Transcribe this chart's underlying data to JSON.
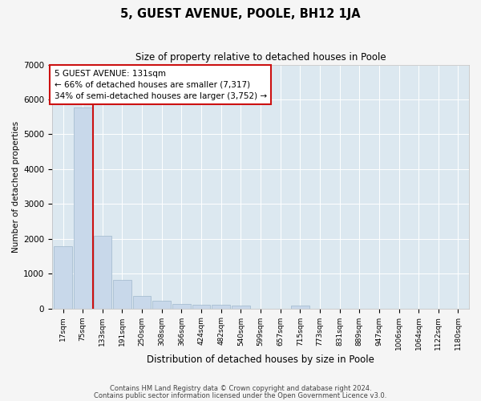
{
  "title": "5, GUEST AVENUE, POOLE, BH12 1JA",
  "subtitle": "Size of property relative to detached houses in Poole",
  "xlabel": "Distribution of detached houses by size in Poole",
  "ylabel": "Number of detached properties",
  "bar_labels": [
    "17sqm",
    "75sqm",
    "133sqm",
    "191sqm",
    "250sqm",
    "308sqm",
    "366sqm",
    "424sqm",
    "482sqm",
    "540sqm",
    "599sqm",
    "657sqm",
    "715sqm",
    "773sqm",
    "831sqm",
    "889sqm",
    "947sqm",
    "1006sqm",
    "1064sqm",
    "1122sqm",
    "1180sqm"
  ],
  "bar_values": [
    1780,
    5780,
    2080,
    810,
    370,
    230,
    130,
    110,
    100,
    85,
    0,
    0,
    90,
    0,
    0,
    0,
    0,
    0,
    0,
    0,
    0
  ],
  "bar_color": "#c8d8ea",
  "bar_edgecolor": "#a0b8cc",
  "vline_x": 2.0,
  "vline_color": "#cc1111",
  "annotation_line1": "5 GUEST AVENUE: 131sqm",
  "annotation_line2": "← 66% of detached houses are smaller (7,317)",
  "annotation_line3": "34% of semi-detached houses are larger (3,752) →",
  "annot_edge_color": "#cc1111",
  "annot_face_color": "#ffffff",
  "ylim": [
    0,
    7000
  ],
  "yticks": [
    0,
    1000,
    2000,
    3000,
    4000,
    5000,
    6000,
    7000
  ],
  "plot_bg": "#dce8f0",
  "fig_bg": "#f5f5f5",
  "grid_color": "#ffffff",
  "footer_line1": "Contains HM Land Registry data © Crown copyright and database right 2024.",
  "footer_line2": "Contains public sector information licensed under the Open Government Licence v3.0."
}
